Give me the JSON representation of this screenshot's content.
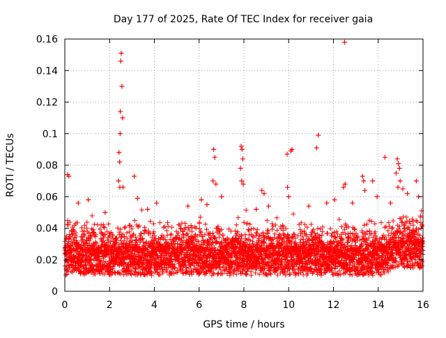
{
  "chart_data": {
    "type": "scatter",
    "title": "Day 177 of 2025, Rate Of TEC Index for receiver gaia",
    "xlabel": "GPS time / hours",
    "ylabel": "ROTI / TECUs",
    "xlim": [
      0,
      16
    ],
    "ylim": [
      0,
      0.16
    ],
    "xticks": [
      "0",
      "2",
      "4",
      "6",
      "8",
      "10",
      "12",
      "14",
      "16"
    ],
    "yticks": [
      "0",
      "0.02",
      "0.04",
      "0.06",
      "0.08",
      "0.1",
      "0.12",
      "0.14",
      "0.16"
    ],
    "grid": true,
    "marker": "plus",
    "color": "#ff0000",
    "series": [
      {
        "points": [
          [
            0.12,
            0.074
          ],
          [
            0.18,
            0.073
          ],
          [
            2.42,
            0.088
          ],
          [
            2.45,
            0.082
          ],
          [
            2.47,
            0.1
          ],
          [
            2.48,
            0.114
          ],
          [
            2.5,
            0.146
          ],
          [
            2.52,
            0.151
          ],
          [
            2.55,
            0.13
          ],
          [
            2.58,
            0.11
          ],
          [
            2.4,
            0.07
          ],
          [
            2.46,
            0.066
          ],
          [
            2.6,
            0.066
          ],
          [
            3.1,
            0.073
          ],
          [
            3.25,
            0.059
          ],
          [
            6.65,
            0.09
          ],
          [
            6.7,
            0.085
          ],
          [
            6.75,
            0.068
          ],
          [
            6.62,
            0.07
          ],
          [
            7.0,
            0.06
          ],
          [
            7.88,
            0.092
          ],
          [
            7.92,
            0.09
          ],
          [
            7.95,
            0.084
          ],
          [
            7.85,
            0.078
          ],
          [
            7.9,
            0.07
          ],
          [
            7.97,
            0.068
          ],
          [
            8.8,
            0.064
          ],
          [
            8.9,
            0.062
          ],
          [
            9.93,
            0.087
          ],
          [
            10.1,
            0.089
          ],
          [
            10.15,
            0.09
          ],
          [
            9.95,
            0.066
          ],
          [
            10.0,
            0.06
          ],
          [
            11.25,
            0.091
          ],
          [
            11.32,
            0.099
          ],
          [
            12.5,
            0.158
          ],
          [
            12.45,
            0.066
          ],
          [
            12.52,
            0.068
          ],
          [
            13.3,
            0.073
          ],
          [
            13.35,
            0.07
          ],
          [
            13.75,
            0.07
          ],
          [
            13.4,
            0.064
          ],
          [
            14.3,
            0.085
          ],
          [
            14.85,
            0.084
          ],
          [
            14.9,
            0.081
          ],
          [
            14.95,
            0.078
          ],
          [
            14.8,
            0.075
          ],
          [
            14.98,
            0.07
          ],
          [
            14.88,
            0.066
          ],
          [
            15.1,
            0.065
          ],
          [
            15.3,
            0.062
          ],
          [
            15.7,
            0.07
          ],
          [
            15.8,
            0.06
          ],
          [
            0.6,
            0.056
          ],
          [
            1.05,
            0.058
          ],
          [
            1.8,
            0.05
          ],
          [
            3.7,
            0.052
          ],
          [
            4.1,
            0.056
          ],
          [
            5.5,
            0.054
          ],
          [
            6.1,
            0.058
          ],
          [
            6.35,
            0.055
          ],
          [
            8.55,
            0.052
          ],
          [
            9.1,
            0.054
          ],
          [
            10.9,
            0.054
          ],
          [
            11.7,
            0.056
          ],
          [
            12.05,
            0.058
          ],
          [
            12.85,
            0.056
          ],
          [
            13.95,
            0.06
          ],
          [
            14.55,
            0.056
          ]
        ]
      }
    ]
  }
}
